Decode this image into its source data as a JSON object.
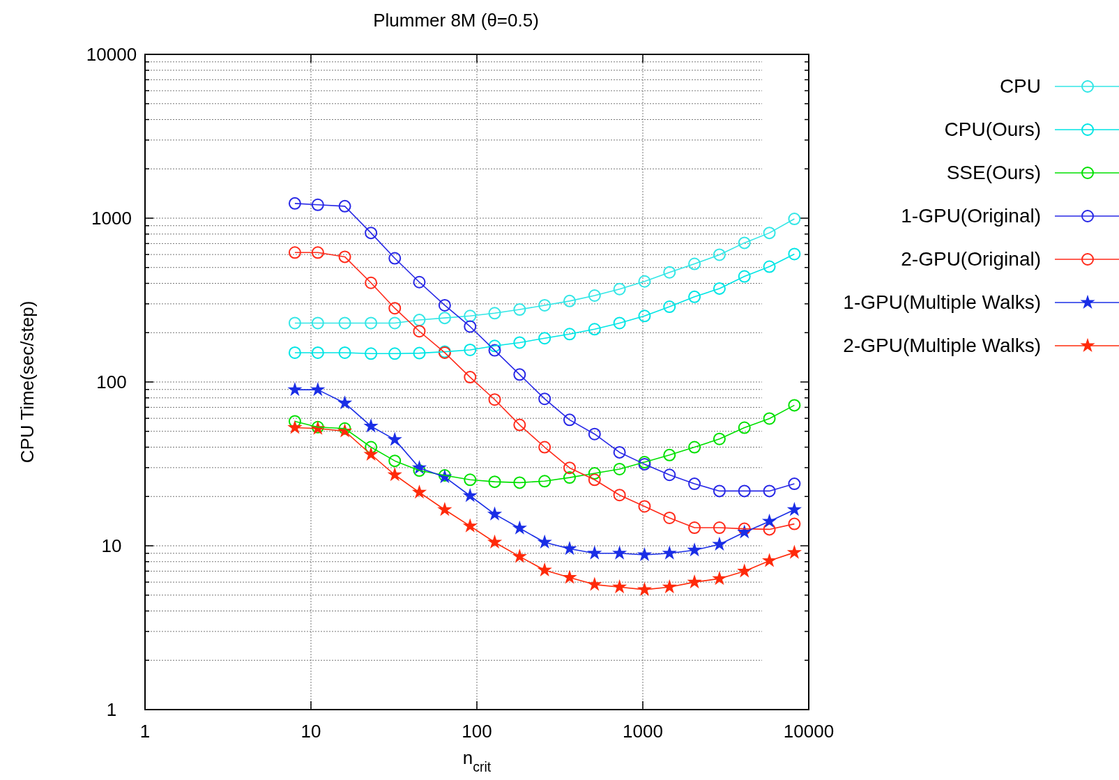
{
  "chart_data": {
    "type": "line",
    "title": "Plummer 8M (θ=0.5)",
    "xlabel": "n$_{crit}$",
    "ylabel": "CPU Time(sec/step)",
    "log": "xy",
    "grid": true,
    "legend": "right",
    "xlim": [
      1,
      10000
    ],
    "ylim": [
      1,
      10000
    ],
    "xticks": [
      1,
      10,
      100,
      1000,
      10000
    ],
    "yticks": [
      1,
      {
        "value": 2,
        "label": null
      },
      {
        "value": 3,
        "label": null
      },
      {
        "value": 4,
        "label": null
      },
      {
        "value": 5,
        "label": null
      },
      {
        "value": 6,
        "label": null
      },
      {
        "value": 7,
        "label": null
      },
      {
        "value": 8,
        "label": null
      },
      {
        "value": 9,
        "label": null
      },
      10,
      {
        "value": 20,
        "label": null
      },
      {
        "value": 30,
        "label": null
      },
      {
        "value": 40,
        "label": null
      },
      {
        "value": 50,
        "label": null
      },
      {
        "value": 60,
        "label": null
      },
      {
        "value": 70,
        "label": null
      },
      {
        "value": 80,
        "label": null
      },
      {
        "value": 90,
        "label": null
      },
      100,
      {
        "value": 200,
        "label": null
      },
      {
        "value": 300,
        "label": null
      },
      {
        "value": 400,
        "label": null
      },
      {
        "value": 500,
        "label": null
      },
      {
        "value": 600,
        "label": null
      },
      {
        "value": 700,
        "label": null
      },
      {
        "value": 800,
        "label": null
      },
      {
        "value": 900,
        "label": null
      },
      1000,
      {
        "value": 2000,
        "label": null
      },
      {
        "value": 3000,
        "label": null
      },
      {
        "value": 4000,
        "label": null
      },
      {
        "value": 5000,
        "label": null
      },
      {
        "value": 6000,
        "label": null
      },
      {
        "value": 7000,
        "label": null
      },
      {
        "value": 8000,
        "label": null
      },
      {
        "value": 9000,
        "label": null
      },
      10000
    ],
    "x": [
      8,
      11,
      16,
      23,
      32,
      45,
      64,
      91,
      128,
      181,
      256,
      362,
      512,
      724,
      1024,
      1448,
      2048,
      2896,
      4096,
      5793,
      8192
    ],
    "series": [
      {
        "name": "CPU",
        "color": "#33e6e6",
        "marker": "circle",
        "values": [
          229,
          229,
          229,
          229,
          229,
          239,
          246,
          253,
          263,
          277,
          294,
          312,
          337,
          369,
          411,
          467,
          526,
          598,
          707,
          813,
          990
        ]
      },
      {
        "name": "CPU(Ours)",
        "color": "#00e5e5",
        "marker": "circle",
        "values": [
          151,
          151,
          151,
          149,
          149,
          150,
          153,
          157,
          166,
          174,
          185,
          196,
          210,
          229,
          253,
          288,
          331,
          372,
          441,
          506,
          604
        ]
      },
      {
        "name": "SSE(Ours)",
        "color": "#00e000",
        "marker": "circle",
        "values": [
          57.5,
          53,
          52,
          40,
          33,
          28.8,
          26.9,
          25.3,
          24.6,
          24.3,
          24.8,
          26.1,
          27.7,
          29.4,
          32.4,
          35.8,
          40,
          44.9,
          52.6,
          59.8,
          72.1
        ]
      },
      {
        "name": "1-GPU(Original)",
        "color": "#2828e6",
        "marker": "circle",
        "values": [
          1230,
          1207,
          1183,
          813,
          569,
          407,
          294,
          218,
          156,
          111,
          78.9,
          58.7,
          48.1,
          37.2,
          31.5,
          27.1,
          23.9,
          21.6,
          21.6,
          21.6,
          23.9
        ]
      },
      {
        "name": "2-GPU(Original)",
        "color": "#ff2a1a",
        "marker": "circle",
        "values": [
          617,
          617,
          581,
          403,
          282,
          204,
          151,
          107,
          78.1,
          54.7,
          40,
          29.9,
          25.3,
          20.4,
          17.4,
          14.8,
          12.9,
          12.9,
          12.7,
          12.6,
          13.6
        ]
      },
      {
        "name": "1-GPU(Multiple Walks)",
        "color": "#1a2ee6",
        "marker": "star",
        "values": [
          89.7,
          89.7,
          74.3,
          53.7,
          44.5,
          29.9,
          26.3,
          20.2,
          15.6,
          12.8,
          10.5,
          9.6,
          9.0,
          9.0,
          8.8,
          9.0,
          9.4,
          10.2,
          12.1,
          14.1,
          16.6
        ]
      },
      {
        "name": "2-GPU(Multiple Walks)",
        "color": "#ff2a0a",
        "marker": "star",
        "values": [
          52.6,
          52,
          50.1,
          36.1,
          27.1,
          21.2,
          16.6,
          13.2,
          10.5,
          8.6,
          7.1,
          6.4,
          5.8,
          5.6,
          5.4,
          5.6,
          6.0,
          6.3,
          7.0,
          8.1,
          9.1
        ]
      }
    ]
  }
}
